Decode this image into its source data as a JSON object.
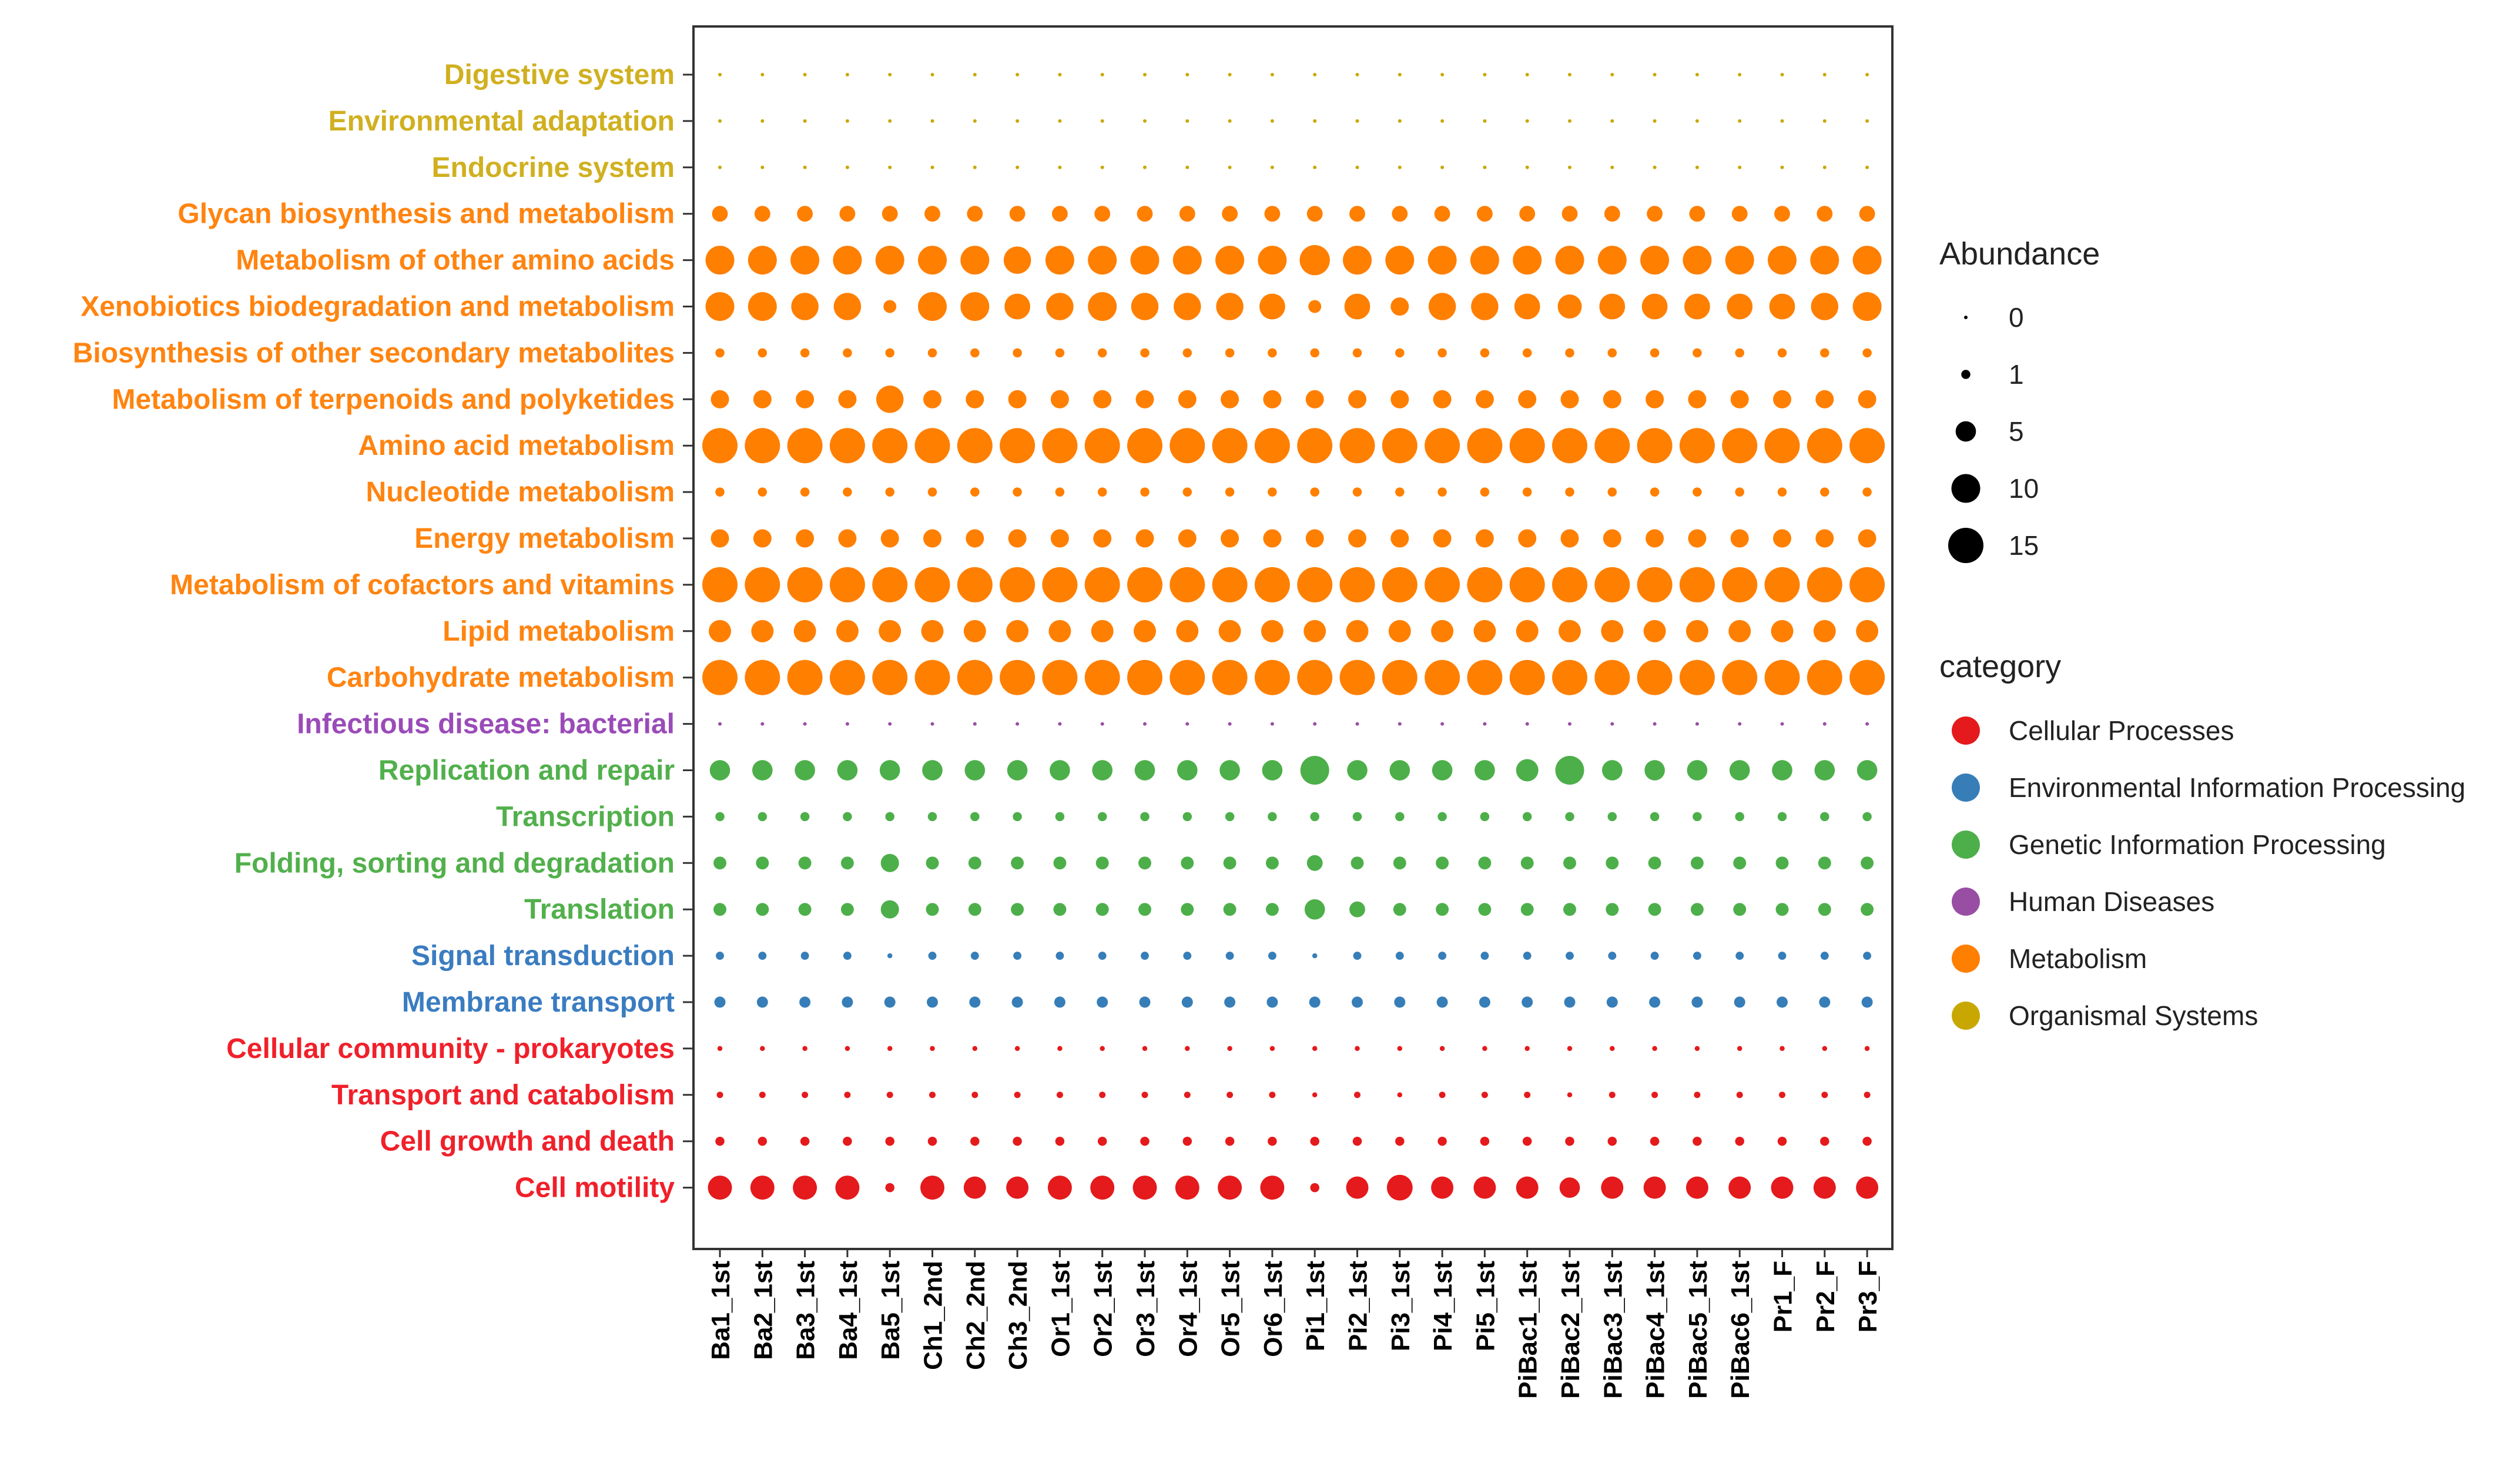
{
  "chart_data": {
    "type": "scatter",
    "title": "",
    "xlabel": "",
    "ylabel": "",
    "samples": [
      "Ba1_1st",
      "Ba2_1st",
      "Ba3_1st",
      "Ba4_1st",
      "Ba5_1st",
      "Ch1_2nd",
      "Ch2_2nd",
      "Ch3_2nd",
      "Or1_1st",
      "Or2_1st",
      "Or3_1st",
      "Or4_1st",
      "Or5_1st",
      "Or6_1st",
      "Pi1_1st",
      "Pi2_1st",
      "Pi3_1st",
      "Pi4_1st",
      "Pi5_1st",
      "PiBac1_1st",
      "PiBac2_1st",
      "PiBac3_1st",
      "PiBac4_1st",
      "PiBac5_1st",
      "PiBac6_1st",
      "Pr1_F",
      "Pr2_F",
      "Pr3_F"
    ],
    "pathways": [
      {
        "name": "Digestive system",
        "category": "Organismal Systems",
        "values": [
          0.1,
          0.1,
          0.1,
          0.1,
          0.1,
          0.1,
          0.1,
          0.1,
          0.1,
          0.1,
          0.1,
          0.1,
          0.1,
          0.1,
          0.1,
          0.1,
          0.1,
          0.1,
          0.1,
          0.1,
          0.1,
          0.1,
          0.1,
          0.1,
          0.1,
          0.1,
          0.1,
          0.1
        ]
      },
      {
        "name": "Environmental adaptation",
        "category": "Organismal Systems",
        "values": [
          0.1,
          0.1,
          0.1,
          0.1,
          0.1,
          0.1,
          0.1,
          0.1,
          0.1,
          0.1,
          0.1,
          0.1,
          0.1,
          0.1,
          0.1,
          0.1,
          0.1,
          0.1,
          0.1,
          0.1,
          0.1,
          0.1,
          0.1,
          0.1,
          0.1,
          0.1,
          0.1,
          0.1
        ]
      },
      {
        "name": "Endocrine system",
        "category": "Organismal Systems",
        "values": [
          0.1,
          0.1,
          0.1,
          0.1,
          0.1,
          0.1,
          0.1,
          0.1,
          0.1,
          0.1,
          0.1,
          0.1,
          0.1,
          0.1,
          0.1,
          0.1,
          0.1,
          0.1,
          0.1,
          0.1,
          0.1,
          0.1,
          0.1,
          0.1,
          0.1,
          0.1,
          0.1,
          0.1
        ]
      },
      {
        "name": "Glycan biosynthesis and metabolism",
        "category": "Metabolism",
        "values": [
          3,
          3,
          3,
          3,
          3,
          3,
          3,
          3,
          3,
          3,
          3,
          3,
          3,
          3,
          3,
          3,
          3,
          3,
          3,
          3,
          3,
          3,
          3,
          3,
          3,
          3,
          3,
          3
        ]
      },
      {
        "name": "Metabolism of other amino acids",
        "category": "Metabolism",
        "values": [
          10,
          10,
          10,
          10,
          10,
          10,
          10,
          9,
          10,
          10,
          10,
          10,
          10,
          10,
          11,
          10,
          10,
          10,
          10,
          10,
          10,
          10,
          10,
          10,
          10,
          10,
          10,
          10
        ]
      },
      {
        "name": "Xenobiotics biodegradation and metabolism",
        "category": "Metabolism",
        "values": [
          10,
          10,
          9,
          9,
          2,
          10,
          10,
          8,
          9,
          10,
          9,
          9,
          9,
          8,
          2,
          8,
          4,
          9,
          9,
          8,
          7,
          8,
          8,
          8,
          8,
          8,
          9,
          10
        ]
      },
      {
        "name": "Biosynthesis of other secondary metabolites",
        "category": "Metabolism",
        "values": [
          1,
          1,
          1,
          1,
          1,
          1,
          1,
          1,
          1,
          1,
          1,
          1,
          1,
          1,
          1,
          1,
          1,
          1,
          1,
          1,
          1,
          1,
          1,
          1,
          1,
          1,
          1,
          1
        ]
      },
      {
        "name": "Metabolism of terpenoids and polyketides",
        "category": "Metabolism",
        "values": [
          4,
          4,
          4,
          4,
          9,
          4,
          4,
          4,
          4,
          4,
          4,
          4,
          4,
          4,
          4,
          4,
          4,
          4,
          4,
          4,
          4,
          4,
          4,
          4,
          4,
          4,
          4,
          4
        ]
      },
      {
        "name": "Amino acid metabolism",
        "category": "Metabolism",
        "values": [
          15,
          15,
          15,
          15,
          15,
          15,
          15,
          15,
          15,
          15,
          15,
          15,
          15,
          15,
          15,
          15,
          15,
          15,
          15,
          15,
          15,
          15,
          15,
          15,
          15,
          15,
          15,
          15
        ]
      },
      {
        "name": "Nucleotide metabolism",
        "category": "Metabolism",
        "values": [
          1,
          1,
          1,
          1,
          1,
          1,
          1,
          1,
          1,
          1,
          1,
          1,
          1,
          1,
          1,
          1,
          1,
          1,
          1,
          1,
          1,
          1,
          1,
          1,
          1,
          1,
          1,
          1
        ]
      },
      {
        "name": "Energy metabolism",
        "category": "Metabolism",
        "values": [
          4,
          4,
          4,
          4,
          4,
          4,
          4,
          4,
          4,
          4,
          4,
          4,
          4,
          4,
          4,
          4,
          4,
          4,
          4,
          4,
          4,
          4,
          4,
          4,
          4,
          4,
          4,
          4
        ]
      },
      {
        "name": "Metabolism of cofactors and vitamins",
        "category": "Metabolism",
        "values": [
          15,
          15,
          15,
          15,
          15,
          15,
          15,
          15,
          15,
          15,
          15,
          15,
          15,
          15,
          15,
          15,
          15,
          15,
          15,
          15,
          15,
          15,
          15,
          15,
          15,
          15,
          15,
          15
        ]
      },
      {
        "name": "Lipid metabolism",
        "category": "Metabolism",
        "values": [
          6,
          6,
          6,
          6,
          6,
          6,
          6,
          6,
          6,
          6,
          6,
          6,
          6,
          6,
          6,
          6,
          6,
          6,
          6,
          6,
          6,
          6,
          6,
          6,
          6,
          6,
          6,
          6
        ]
      },
      {
        "name": "Carbohydrate metabolism",
        "category": "Metabolism",
        "values": [
          15,
          15,
          15,
          15,
          15,
          15,
          15,
          15,
          15,
          15,
          15,
          15,
          15,
          15,
          15,
          15,
          15,
          15,
          15,
          15,
          15,
          15,
          15,
          15,
          15,
          15,
          15,
          15
        ]
      },
      {
        "name": "Infectious disease: bacterial",
        "category": "Human Diseases",
        "values": [
          0.1,
          0.1,
          0.1,
          0.1,
          0.1,
          0.1,
          0.1,
          0.1,
          0.1,
          0.1,
          0.1,
          0.1,
          0.1,
          0.1,
          0.1,
          0.1,
          0.1,
          0.1,
          0.1,
          0.1,
          0.1,
          0.1,
          0.1,
          0.1,
          0.1,
          0.1,
          0.1,
          0.1
        ]
      },
      {
        "name": "Replication and repair",
        "category": "Genetic Information Processing",
        "values": [
          5,
          5,
          5,
          5,
          5,
          5,
          5,
          5,
          5,
          5,
          5,
          5,
          5,
          5,
          10,
          5,
          5,
          5,
          5,
          6,
          10,
          5,
          5,
          5,
          5,
          5,
          5,
          5
        ]
      },
      {
        "name": "Transcription",
        "category": "Genetic Information Processing",
        "values": [
          1,
          1,
          1,
          1,
          1,
          1,
          1,
          1,
          1,
          1,
          1,
          1,
          1,
          1,
          1,
          1,
          1,
          1,
          1,
          1,
          1,
          1,
          1,
          1,
          1,
          1,
          1,
          1
        ]
      },
      {
        "name": "Folding, sorting and degradation",
        "category": "Genetic Information Processing",
        "values": [
          2,
          2,
          2,
          2,
          4,
          2,
          2,
          2,
          2,
          2,
          2,
          2,
          2,
          2,
          3,
          2,
          2,
          2,
          2,
          2,
          2,
          2,
          2,
          2,
          2,
          2,
          2,
          2
        ]
      },
      {
        "name": "Translation",
        "category": "Genetic Information Processing",
        "values": [
          2,
          2,
          2,
          2,
          4,
          2,
          2,
          2,
          2,
          2,
          2,
          2,
          2,
          2,
          5,
          3,
          2,
          2,
          2,
          2,
          2,
          2,
          2,
          2,
          2,
          2,
          2,
          2
        ]
      },
      {
        "name": "Signal transduction",
        "category": "Environmental Information Processing",
        "values": [
          0.8,
          0.8,
          0.8,
          0.8,
          0.3,
          0.8,
          0.8,
          0.8,
          0.8,
          0.8,
          0.8,
          0.8,
          0.8,
          0.8,
          0.3,
          0.8,
          0.8,
          0.8,
          0.8,
          0.8,
          0.8,
          0.8,
          0.8,
          0.8,
          0.8,
          0.8,
          0.8,
          0.8
        ]
      },
      {
        "name": "Membrane transport",
        "category": "Environmental Information Processing",
        "values": [
          1.5,
          1.5,
          1.5,
          1.5,
          1.5,
          1.5,
          1.5,
          1.5,
          1.5,
          1.5,
          1.5,
          1.5,
          1.5,
          1.5,
          1.5,
          1.5,
          1.5,
          1.5,
          1.5,
          1.5,
          1.5,
          1.5,
          1.5,
          1.5,
          1.5,
          1.5,
          1.5,
          1.5
        ]
      },
      {
        "name": "Cellular community - prokaryotes",
        "category": "Cellular Processes",
        "values": [
          0.3,
          0.3,
          0.3,
          0.3,
          0.3,
          0.3,
          0.3,
          0.3,
          0.3,
          0.3,
          0.3,
          0.3,
          0.3,
          0.3,
          0.3,
          0.3,
          0.3,
          0.3,
          0.3,
          0.3,
          0.3,
          0.3,
          0.3,
          0.3,
          0.3,
          0.3,
          0.3,
          0.3
        ]
      },
      {
        "name": "Transport and catabolism",
        "category": "Cellular Processes",
        "values": [
          0.5,
          0.5,
          0.5,
          0.5,
          0.5,
          0.5,
          0.5,
          0.5,
          0.5,
          0.5,
          0.5,
          0.5,
          0.5,
          0.5,
          0.3,
          0.5,
          0.3,
          0.5,
          0.5,
          0.5,
          0.3,
          0.5,
          0.5,
          0.5,
          0.5,
          0.5,
          0.5,
          0.5
        ]
      },
      {
        "name": "Cell growth and death",
        "category": "Cellular Processes",
        "values": [
          1,
          1,
          1,
          1,
          1,
          1,
          1,
          1,
          1,
          1,
          1,
          1,
          1,
          1,
          1,
          1,
          1,
          1,
          1,
          1,
          1,
          1,
          1,
          1,
          1,
          1,
          1,
          1
        ]
      },
      {
        "name": "Cell motility",
        "category": "Cellular Processes",
        "values": [
          7,
          7,
          7,
          7,
          1,
          7,
          6,
          6,
          7,
          7,
          7,
          7,
          7,
          7,
          1,
          6,
          8,
          6,
          6,
          6,
          5,
          6,
          6,
          6,
          6,
          6,
          6,
          6
        ]
      }
    ],
    "size_legend": {
      "title": "Abundance",
      "values": [
        0,
        1,
        5,
        10,
        15
      ],
      "labels": [
        "0",
        "1",
        "5",
        "10",
        "15"
      ]
    },
    "color_legend": {
      "title": "category",
      "entries": [
        {
          "name": "Cellular Processes",
          "color": "#e41a1c"
        },
        {
          "name": "Environmental Information Processing",
          "color": "#377eb8"
        },
        {
          "name": "Genetic Information Processing",
          "color": "#4daf4a"
        },
        {
          "name": "Human Diseases",
          "color": "#984ea3"
        },
        {
          "name": "Metabolism",
          "color": "#ff7f00"
        },
        {
          "name": "Organismal Systems",
          "color": "#c8a800"
        }
      ]
    },
    "label_colors": {
      "Cellular Processes": "#f0202a",
      "Environmental Information Processing": "#3a7cc0",
      "Genetic Information Processing": "#52b04c",
      "Human Diseases": "#9a4bb8",
      "Metabolism": "#ff8410",
      "Organismal Systems": "#d0b020"
    },
    "legend_position": "right",
    "grid": false
  }
}
